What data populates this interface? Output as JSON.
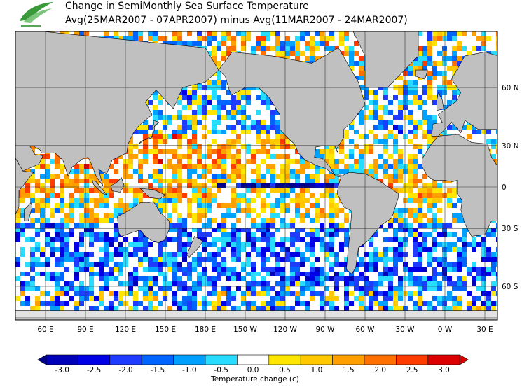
{
  "header": {
    "title": "Change in SemiMonthly Sea Surface Temperature",
    "subtitle": "Avg(25MAR2007 - 07APR2007) minus Avg(11MAR2007 - 24MAR2007)"
  },
  "map": {
    "lat_labels": [
      "60 N",
      "30 N",
      "0",
      "30 S",
      "60 S"
    ],
    "lon_labels": [
      "60 E",
      "90 E",
      "120 E",
      "150 E",
      "180 E",
      "150 W",
      "120 W",
      "90 W",
      "60 W",
      "30 W",
      "0 W",
      "30 E"
    ],
    "land_color": "#c0c0c0",
    "ice_color": "#e2e2e2"
  },
  "colorbar": {
    "label": "Temperature change  (c)",
    "ticks": [
      "-3.0",
      "-2.5",
      "-2.0",
      "-1.5",
      "-1.0",
      "-0.5",
      "0.0",
      "0.5",
      "1.0",
      "1.5",
      "2.0",
      "2.5",
      "3.0"
    ],
    "colors": [
      "#00008b",
      "#0000b8",
      "#0000e6",
      "#1e3cff",
      "#0064ff",
      "#00a0ff",
      "#28dcff",
      "#ffffff",
      "#ffe600",
      "#ffc800",
      "#ffa000",
      "#ff7000",
      "#ff3c00",
      "#dc0000"
    ]
  }
}
